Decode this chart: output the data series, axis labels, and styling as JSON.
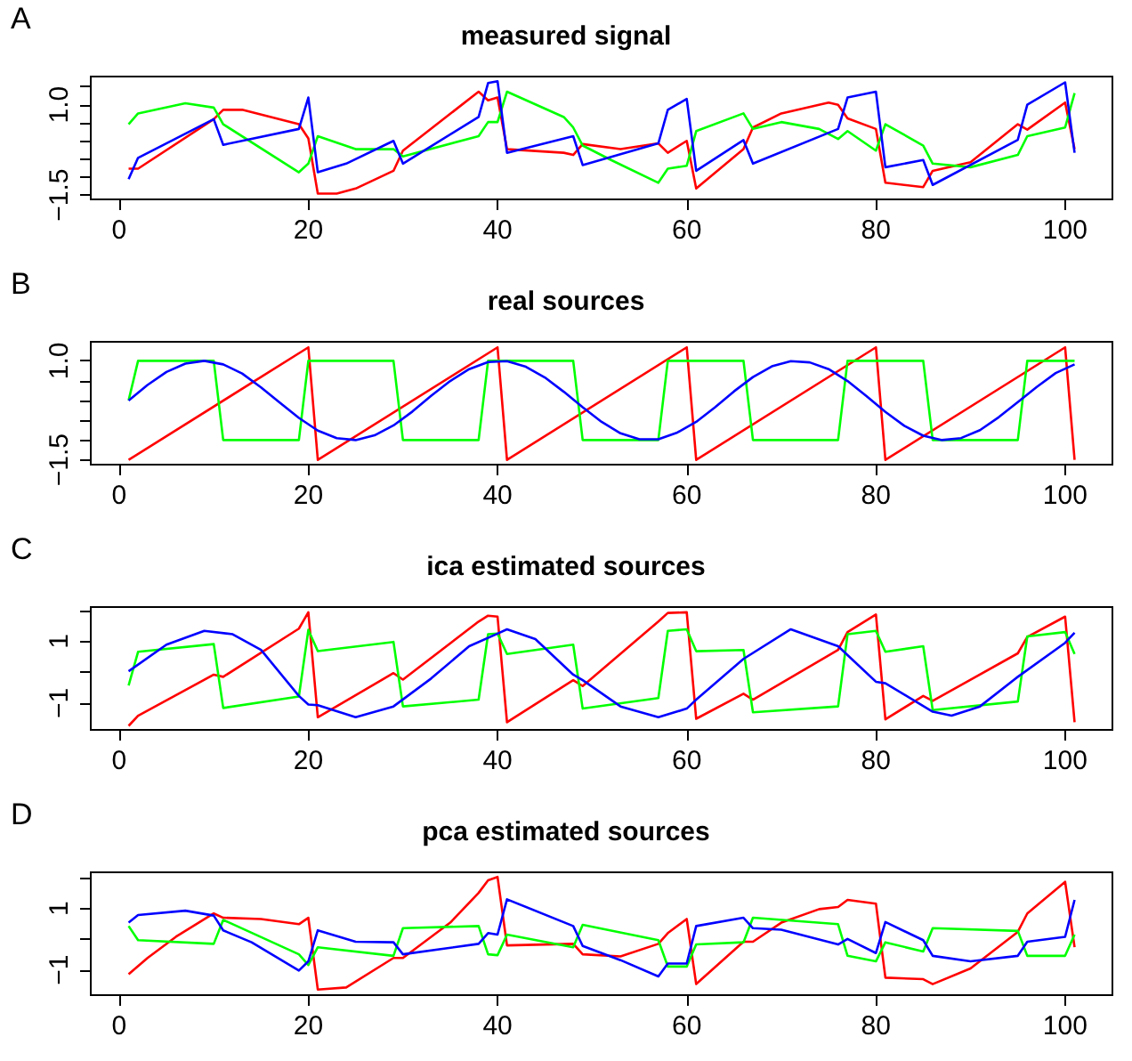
{
  "chart_data": [
    {
      "type": "line",
      "title": "measured signal",
      "annotations": [
        "A"
      ],
      "xlim": [
        -3,
        105
      ],
      "xticks": [
        0,
        20,
        40,
        60,
        80,
        100
      ],
      "ylim": [
        -1.62,
        1.78
      ],
      "yticks": [
        {
          "value": -1.5,
          "label": "−1.5"
        },
        {
          "value": -1.0,
          "label": null
        },
        {
          "value": -0.5,
          "label": null
        },
        {
          "value": 0,
          "label": null
        },
        {
          "value": 0.5,
          "label": null
        },
        {
          "value": 1.0,
          "label": "1.0"
        },
        {
          "value": 1.5,
          "label": null
        }
      ],
      "grid": false,
      "marker": "none",
      "line_style": "solid",
      "series": [
        {
          "color": "#ff0000",
          "x": [
            1,
            2,
            10,
            11,
            13,
            19,
            20,
            21,
            23,
            25,
            29,
            30,
            38,
            39,
            40,
            41,
            47,
            48,
            49,
            53,
            57,
            58,
            60,
            61,
            66,
            67,
            70,
            75,
            76,
            77,
            80,
            81,
            85,
            86,
            90,
            95,
            96,
            100,
            101
          ],
          "values": [
            -0.77,
            -0.77,
            0.6,
            0.86,
            0.86,
            0.46,
            0.07,
            -1.46,
            -1.46,
            -1.32,
            -0.83,
            -0.27,
            1.36,
            1.12,
            1.2,
            -0.23,
            -0.33,
            -0.39,
            -0.09,
            -0.23,
            -0.07,
            -0.33,
            0.0,
            -1.32,
            -0.23,
            0.37,
            0.76,
            1.06,
            1.0,
            0.62,
            0.33,
            -1.16,
            -1.28,
            -0.83,
            -0.59,
            0.46,
            0.31,
            1.06,
            -0.23
          ]
        },
        {
          "color": "#00ff00",
          "x": [
            1,
            2,
            7,
            10,
            11,
            19,
            20,
            21,
            25,
            29,
            30,
            38,
            39,
            40,
            41,
            47,
            48,
            49,
            52,
            57,
            58,
            60,
            61,
            66,
            67,
            70,
            74,
            76,
            77,
            80,
            81,
            85,
            86,
            90,
            95,
            96,
            100,
            101
          ],
          "values": [
            0.46,
            0.76,
            1.04,
            0.92,
            0.46,
            -0.87,
            -0.63,
            0.13,
            -0.23,
            -0.23,
            -0.43,
            0.13,
            0.52,
            0.52,
            1.36,
            0.66,
            0.37,
            -0.13,
            -0.53,
            -1.16,
            -0.77,
            -0.69,
            0.27,
            0.76,
            0.33,
            0.52,
            0.33,
            0.05,
            0.27,
            -0.27,
            0.46,
            -0.13,
            -0.63,
            -0.73,
            -0.39,
            0.13,
            0.37,
            1.32
          ]
        },
        {
          "color": "#0000ff",
          "x": [
            1,
            2,
            10,
            11,
            19,
            20,
            21,
            24,
            29,
            30,
            38,
            39,
            40,
            41,
            48,
            49,
            57,
            58,
            60,
            61,
            66,
            67,
            76,
            77,
            80,
            81,
            85,
            86,
            95,
            96,
            100,
            101
          ],
          "values": [
            -1.06,
            -0.47,
            0.6,
            -0.11,
            0.33,
            1.2,
            -0.87,
            -0.63,
            0.0,
            -0.63,
            0.66,
            1.6,
            1.65,
            -0.33,
            0.13,
            -0.67,
            -0.07,
            0.86,
            1.16,
            -0.83,
            0.02,
            -0.63,
            0.33,
            1.2,
            1.36,
            -0.73,
            -0.53,
            -1.22,
            0.03,
            1.0,
            1.62,
            -0.33
          ]
        }
      ]
    },
    {
      "type": "line",
      "title": "real sources",
      "annotations": [
        "B"
      ],
      "xlim": [
        -3,
        105
      ],
      "xticks": [
        0,
        20,
        40,
        60,
        80,
        100
      ],
      "ylim": [
        -1.62,
        1.48
      ],
      "yticks": [
        {
          "value": -1.5,
          "label": "−1.5"
        },
        {
          "value": -1.0,
          "label": null
        },
        {
          "value": -0.5,
          "label": null
        },
        {
          "value": 0,
          "label": null
        },
        {
          "value": 0.5,
          "label": null
        },
        {
          "value": 1.0,
          "label": "1.0"
        }
      ],
      "grid": false,
      "marker": "none",
      "line_style": "solid",
      "series": [
        {
          "color": "#ff0000",
          "x": [
            1,
            20,
            21,
            40,
            41,
            60,
            61,
            80,
            81,
            100,
            101
          ],
          "values": [
            -1.5,
            1.34,
            -1.5,
            1.34,
            -1.5,
            1.34,
            -1.5,
            1.34,
            -1.5,
            1.34,
            -1.5
          ]
        },
        {
          "color": "#00ff00",
          "x": [
            1,
            2,
            10,
            11,
            19,
            20,
            29,
            30,
            38,
            39,
            48,
            49,
            57,
            58,
            66,
            67,
            76,
            77,
            85,
            86,
            95,
            96,
            101
          ],
          "values": [
            0,
            1,
            1,
            -1,
            -1,
            1,
            1,
            -1,
            -1,
            1,
            1,
            -1,
            -1,
            1,
            1,
            -1,
            -1,
            1,
            1,
            -1,
            -1,
            1,
            1
          ]
        },
        {
          "color": "#0000ff",
          "x": [
            1,
            3,
            5,
            7,
            9,
            11,
            13,
            15,
            17,
            19,
            21,
            23,
            25,
            27,
            29,
            31,
            33,
            35,
            37,
            39,
            41,
            43,
            45,
            47,
            49,
            51,
            53,
            55,
            57,
            59,
            61,
            63,
            65,
            67,
            69,
            71,
            73,
            75,
            77,
            79,
            81,
            83,
            85,
            87,
            89,
            91,
            93,
            95,
            97,
            99,
            101
          ],
          "values": [
            0,
            0.39,
            0.72,
            0.93,
            1.0,
            0.91,
            0.68,
            0.33,
            -0.06,
            -0.44,
            -0.76,
            -0.95,
            -1.0,
            -0.88,
            -0.63,
            -0.28,
            0.12,
            0.49,
            0.79,
            0.97,
            0.99,
            0.85,
            0.58,
            0.22,
            -0.17,
            -0.54,
            -0.83,
            -0.98,
            -0.98,
            -0.81,
            -0.54,
            -0.17,
            0.23,
            0.59,
            0.86,
            0.99,
            0.96,
            0.79,
            0.49,
            0.11,
            -0.29,
            -0.64,
            -0.89,
            -1.0,
            -0.95,
            -0.75,
            -0.42,
            -0.04,
            0.34,
            0.69,
            0.91
          ]
        }
      ]
    },
    {
      "type": "line",
      "title": "ica estimated sources",
      "annotations": [
        "C"
      ],
      "xlim": [
        -3,
        105
      ],
      "xticks": [
        0,
        20,
        40,
        60,
        80,
        100
      ],
      "ylim": [
        -1.87,
        2.11
      ],
      "yticks": [
        {
          "value": -1,
          "label": "−1"
        },
        {
          "value": 0,
          "label": null
        },
        {
          "value": 1,
          "label": "1"
        },
        {
          "value": 2,
          "label": null
        }
      ],
      "grid": false,
      "marker": "none",
      "line_style": "solid",
      "series": [
        {
          "color": "#ff0000",
          "x": [
            1,
            2,
            10,
            11,
            19,
            20,
            21,
            29,
            30,
            38,
            39,
            40,
            41,
            48,
            49,
            57,
            58,
            60,
            61,
            66,
            67,
            76,
            77,
            80,
            81,
            85,
            86,
            95,
            96,
            100,
            101
          ],
          "values": [
            -1.74,
            -1.41,
            -0.08,
            -0.15,
            1.41,
            1.94,
            -1.46,
            -0.03,
            -0.24,
            1.64,
            1.83,
            1.8,
            -1.62,
            -0.26,
            -0.45,
            1.64,
            1.92,
            1.94,
            -1.51,
            -0.7,
            -0.89,
            0.72,
            1.3,
            1.87,
            -1.53,
            -0.77,
            -0.93,
            0.61,
            1.14,
            1.8,
            -1.62
          ]
        },
        {
          "color": "#00ff00",
          "x": [
            1,
            2,
            10,
            11,
            19,
            20,
            21,
            29,
            30,
            38,
            39,
            40,
            41,
            48,
            49,
            57,
            58,
            60,
            61,
            66,
            67,
            76,
            77,
            80,
            81,
            85,
            86,
            95,
            96,
            100,
            101
          ],
          "values": [
            -0.43,
            0.66,
            0.91,
            -1.16,
            -0.79,
            1.37,
            0.68,
            0.98,
            -1.11,
            -0.89,
            1.23,
            1.25,
            0.59,
            0.89,
            -1.18,
            -0.84,
            1.34,
            1.39,
            0.68,
            0.72,
            -1.3,
            -1.11,
            1.23,
            1.34,
            0.66,
            0.84,
            -1.23,
            -0.95,
            1.16,
            1.3,
            0.59
          ]
        },
        {
          "color": "#0000ff",
          "x": [
            1,
            5,
            9,
            12,
            15,
            19,
            20,
            21,
            25,
            29,
            33,
            37,
            40,
            41,
            44,
            48,
            49,
            53,
            57,
            60,
            61,
            66,
            71,
            76,
            80,
            81,
            86,
            88,
            91,
            95,
            100,
            101
          ],
          "values": [
            0.03,
            0.89,
            1.34,
            1.23,
            0.72,
            -0.77,
            -1.05,
            -1.07,
            -1.46,
            -1.11,
            -0.2,
            0.84,
            1.25,
            1.39,
            1.07,
            -0.08,
            -0.26,
            -1.11,
            -1.46,
            -1.18,
            -0.89,
            0.43,
            1.39,
            0.84,
            -0.31,
            -0.36,
            -1.28,
            -1.41,
            -1.11,
            -0.15,
            0.95,
            1.28
          ]
        }
      ]
    },
    {
      "type": "line",
      "title": "pca estimated sources",
      "annotations": [
        "D"
      ],
      "xlim": [
        -3,
        105
      ],
      "xticks": [
        0,
        20,
        40,
        60,
        80,
        100
      ],
      "ylim": [
        -1.82,
        2.18
      ],
      "yticks": [
        {
          "value": -1,
          "label": "−1"
        },
        {
          "value": 0,
          "label": null
        },
        {
          "value": 1,
          "label": "1"
        },
        {
          "value": 2,
          "label": null
        }
      ],
      "grid": false,
      "marker": "none",
      "line_style": "solid",
      "series": [
        {
          "color": "#ff0000",
          "x": [
            1,
            3,
            6,
            10,
            11,
            15,
            19,
            20,
            21,
            24,
            29,
            30,
            35,
            38,
            39,
            40,
            41,
            48,
            49,
            53,
            57,
            58,
            60,
            61,
            66,
            67,
            70,
            74,
            76,
            77,
            80,
            81,
            85,
            86,
            90,
            95,
            96,
            100,
            101
          ],
          "values": [
            -1.14,
            -0.61,
            0.08,
            0.84,
            0.7,
            0.66,
            0.49,
            0.7,
            -1.64,
            -1.57,
            -0.61,
            -0.61,
            0.54,
            1.51,
            1.92,
            2.03,
            -0.2,
            -0.15,
            -0.49,
            -0.56,
            -0.15,
            0.2,
            0.66,
            -1.46,
            -0.08,
            -0.08,
            0.54,
            0.98,
            1.05,
            1.28,
            1.16,
            -1.25,
            -1.3,
            -1.46,
            -0.95,
            0.24,
            0.84,
            1.87,
            -0.26
          ]
        },
        {
          "color": "#00ff00",
          "x": [
            1,
            2,
            10,
            11,
            19,
            20,
            21,
            29,
            30,
            38,
            39,
            40,
            41,
            48,
            49,
            57,
            58,
            60,
            61,
            66,
            67,
            76,
            77,
            80,
            81,
            85,
            86,
            95,
            96,
            100,
            101
          ],
          "values": [
            0.43,
            -0.03,
            -0.15,
            0.63,
            -0.49,
            -0.84,
            -0.26,
            -0.54,
            0.36,
            0.43,
            -0.49,
            -0.52,
            0.15,
            -0.26,
            0.47,
            -0.03,
            -0.89,
            -0.89,
            -0.17,
            -0.1,
            0.7,
            0.49,
            -0.54,
            -0.72,
            -0.1,
            -0.4,
            0.36,
            0.27,
            -0.54,
            -0.54,
            0.15
          ]
        },
        {
          "color": "#0000ff",
          "x": [
            1,
            2,
            7,
            10,
            11,
            14,
            19,
            20,
            21,
            25,
            29,
            30,
            38,
            39,
            40,
            41,
            48,
            49,
            53,
            57,
            58,
            60,
            61,
            66,
            67,
            70,
            76,
            77,
            80,
            81,
            85,
            86,
            90,
            95,
            96,
            100,
            101
          ],
          "values": [
            0.54,
            0.79,
            0.93,
            0.77,
            0.29,
            -0.1,
            -1.02,
            -0.72,
            0.29,
            -0.08,
            -0.1,
            -0.49,
            -0.15,
            0.2,
            0.15,
            1.3,
            0.43,
            -0.22,
            -0.68,
            -1.21,
            -0.79,
            -0.79,
            0.43,
            0.7,
            0.36,
            0.31,
            -0.17,
            0.01,
            -0.45,
            0.56,
            -0.03,
            -0.54,
            -0.72,
            -0.54,
            -0.08,
            0.08,
            1.28
          ]
        }
      ]
    }
  ]
}
